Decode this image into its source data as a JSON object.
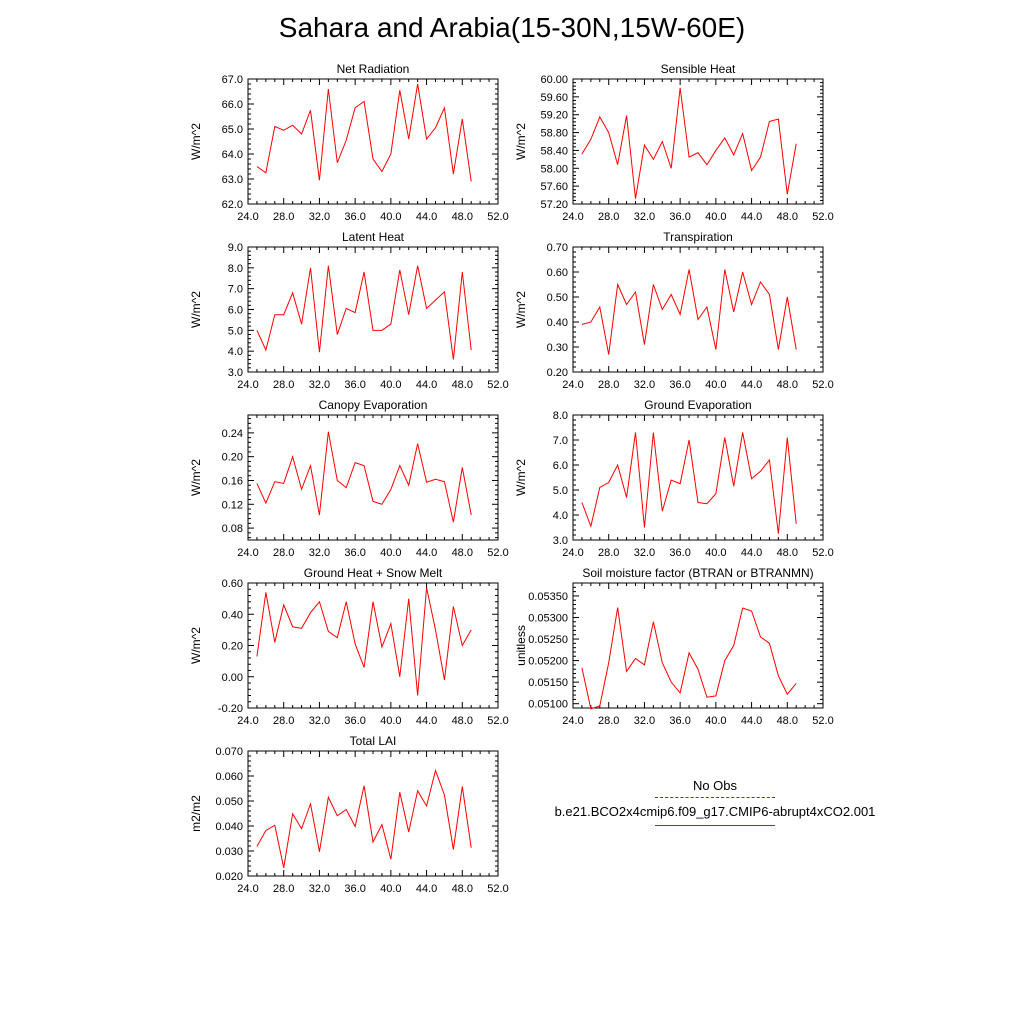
{
  "title": "Sahara and Arabia(15-30N,15W-60E)",
  "colors": {
    "series": "#ff0000",
    "obs": "#3b3b9b",
    "axis": "#000000"
  },
  "legend": {
    "obs_label": "No Obs",
    "case_label": "b.e21.BCO2x4cmip6.f09_g17.CMIP6-abrupt4xCO2.001"
  },
  "chart_data": [
    {
      "type": "line",
      "title": "Net Radiation",
      "ylabel": "W/m^2",
      "xlim": [
        24,
        52
      ],
      "ylim": [
        62,
        67
      ],
      "xticks": [
        "24.0",
        "28.0",
        "32.0",
        "36.0",
        "40.0",
        "44.0",
        "48.0",
        "52.0"
      ],
      "yticks": [
        "62.0",
        "63.0",
        "64.0",
        "65.0",
        "66.0",
        "67.0"
      ],
      "series": [
        {
          "name": "b.e21.BCO2x4cmip6.f09_g17.CMIP6-abrupt4xCO2.001",
          "x": [
            25,
            26,
            27,
            28,
            29,
            30,
            31,
            32,
            33,
            34,
            35,
            36,
            37,
            38,
            39,
            40,
            41,
            42,
            43,
            44,
            45,
            46,
            47,
            48,
            49
          ],
          "values": [
            63.5,
            63.25,
            65.1,
            64.95,
            65.15,
            64.8,
            65.75,
            62.95,
            66.6,
            63.65,
            64.55,
            65.85,
            66.1,
            63.8,
            63.3,
            64.0,
            66.55,
            64.6,
            66.8,
            64.6,
            65.05,
            65.85,
            63.2,
            65.4,
            62.9
          ]
        }
      ]
    },
    {
      "type": "line",
      "title": "Sensible Heat",
      "ylabel": "W/m^2",
      "xlim": [
        24,
        52
      ],
      "ylim": [
        57.2,
        60.0
      ],
      "xticks": [
        "24.0",
        "28.0",
        "32.0",
        "36.0",
        "40.0",
        "44.0",
        "48.0",
        "52.0"
      ],
      "yticks": [
        "57.20",
        "57.60",
        "58.00",
        "58.40",
        "58.80",
        "59.20",
        "59.60",
        "60.00"
      ],
      "series": [
        {
          "name": "b.e21.BCO2x4cmip6.f09_g17.CMIP6-abrupt4xCO2.001",
          "x": [
            25,
            26,
            27,
            28,
            29,
            30,
            31,
            32,
            33,
            34,
            35,
            36,
            37,
            38,
            39,
            40,
            41,
            42,
            43,
            44,
            45,
            46,
            47,
            48,
            49
          ],
          "values": [
            58.32,
            58.65,
            59.15,
            58.8,
            58.08,
            59.18,
            57.32,
            58.52,
            58.2,
            58.6,
            58.0,
            59.8,
            58.25,
            58.35,
            58.08,
            58.4,
            58.68,
            58.3,
            58.78,
            57.95,
            58.25,
            59.05,
            59.1,
            57.42,
            58.55
          ]
        }
      ]
    },
    {
      "type": "line",
      "title": "Latent Heat",
      "ylabel": "W/m^2",
      "xlim": [
        24,
        52
      ],
      "ylim": [
        3.0,
        9.0
      ],
      "xticks": [
        "24.0",
        "28.0",
        "32.0",
        "36.0",
        "40.0",
        "44.0",
        "48.0",
        "52.0"
      ],
      "yticks": [
        "3.0",
        "4.0",
        "5.0",
        "6.0",
        "7.0",
        "8.0",
        "9.0"
      ],
      "series": [
        {
          "name": "b.e21.BCO2x4cmip6.f09_g17.CMIP6-abrupt4xCO2.001",
          "x": [
            25,
            26,
            27,
            28,
            29,
            30,
            31,
            32,
            33,
            34,
            35,
            36,
            37,
            38,
            39,
            40,
            41,
            42,
            43,
            44,
            45,
            46,
            47,
            48,
            49
          ],
          "values": [
            5.0,
            4.05,
            5.75,
            5.75,
            6.8,
            5.3,
            8.0,
            3.95,
            8.1,
            4.8,
            6.05,
            5.85,
            7.8,
            5.0,
            5.0,
            5.3,
            7.9,
            5.75,
            8.1,
            6.05,
            6.45,
            6.85,
            3.6,
            7.8,
            4.05
          ]
        }
      ]
    },
    {
      "type": "line",
      "title": "Transpiration",
      "ylabel": "W/m^2",
      "xlim": [
        24,
        52
      ],
      "ylim": [
        0.2,
        0.7
      ],
      "xticks": [
        "24.0",
        "28.0",
        "32.0",
        "36.0",
        "40.0",
        "44.0",
        "48.0",
        "52.0"
      ],
      "yticks": [
        "0.20",
        "0.30",
        "0.40",
        "0.50",
        "0.60",
        "0.70"
      ],
      "series": [
        {
          "name": "b.e21.BCO2x4cmip6.f09_g17.CMIP6-abrupt4xCO2.001",
          "x": [
            25,
            26,
            27,
            28,
            29,
            30,
            31,
            32,
            33,
            34,
            35,
            36,
            37,
            38,
            39,
            40,
            41,
            42,
            43,
            44,
            45,
            46,
            47,
            48,
            49
          ],
          "values": [
            0.39,
            0.4,
            0.46,
            0.27,
            0.55,
            0.47,
            0.52,
            0.31,
            0.55,
            0.45,
            0.51,
            0.43,
            0.61,
            0.41,
            0.46,
            0.29,
            0.61,
            0.44,
            0.6,
            0.47,
            0.56,
            0.51,
            0.29,
            0.5,
            0.29
          ]
        }
      ]
    },
    {
      "type": "line",
      "title": "Canopy Evaporation",
      "ylabel": "W/m^2",
      "xlim": [
        24,
        52
      ],
      "ylim": [
        0.06,
        0.27
      ],
      "xticks": [
        "24.0",
        "28.0",
        "32.0",
        "36.0",
        "40.0",
        "44.0",
        "48.0",
        "52.0"
      ],
      "yticks": [
        "0.08",
        "0.12",
        "0.16",
        "0.20",
        "0.24"
      ],
      "series": [
        {
          "name": "b.e21.BCO2x4cmip6.f09_g17.CMIP6-abrupt4xCO2.001",
          "x": [
            25,
            26,
            27,
            28,
            29,
            30,
            31,
            32,
            33,
            34,
            35,
            36,
            37,
            38,
            39,
            40,
            41,
            42,
            43,
            44,
            45,
            46,
            47,
            48,
            49
          ],
          "values": [
            0.155,
            0.122,
            0.158,
            0.155,
            0.2,
            0.145,
            0.185,
            0.102,
            0.242,
            0.16,
            0.148,
            0.19,
            0.185,
            0.125,
            0.12,
            0.145,
            0.185,
            0.152,
            0.222,
            0.157,
            0.162,
            0.158,
            0.09,
            0.182,
            0.102
          ]
        }
      ]
    },
    {
      "type": "line",
      "title": "Ground Evaporation",
      "ylabel": "W/m^2",
      "xlim": [
        24,
        52
      ],
      "ylim": [
        3.0,
        8.0
      ],
      "xticks": [
        "24.0",
        "28.0",
        "32.0",
        "36.0",
        "40.0",
        "44.0",
        "48.0",
        "52.0"
      ],
      "yticks": [
        "3.0",
        "4.0",
        "5.0",
        "6.0",
        "7.0",
        "8.0"
      ],
      "series": [
        {
          "name": "b.e21.BCO2x4cmip6.f09_g17.CMIP6-abrupt4xCO2.001",
          "x": [
            25,
            26,
            27,
            28,
            29,
            30,
            31,
            32,
            33,
            34,
            35,
            36,
            37,
            38,
            39,
            40,
            41,
            42,
            43,
            44,
            45,
            46,
            47,
            48,
            49
          ],
          "values": [
            4.5,
            3.55,
            5.1,
            5.3,
            6.0,
            4.7,
            7.3,
            3.5,
            7.3,
            4.15,
            5.4,
            5.25,
            7.0,
            4.5,
            4.45,
            4.85,
            7.1,
            5.15,
            7.3,
            5.45,
            5.75,
            6.2,
            3.25,
            7.1,
            3.65
          ]
        }
      ]
    },
    {
      "type": "line",
      "title": "Ground Heat + Snow Melt",
      "ylabel": "W/m^2",
      "xlim": [
        24,
        52
      ],
      "ylim": [
        -0.2,
        0.6
      ],
      "xticks": [
        "24.0",
        "28.0",
        "32.0",
        "36.0",
        "40.0",
        "44.0",
        "48.0",
        "52.0"
      ],
      "yticks": [
        "-0.20",
        "0.00",
        "0.20",
        "0.40",
        "0.60"
      ],
      "series": [
        {
          "name": "b.e21.BCO2x4cmip6.f09_g17.CMIP6-abrupt4xCO2.001",
          "x": [
            25,
            26,
            27,
            28,
            29,
            30,
            31,
            32,
            33,
            34,
            35,
            36,
            37,
            38,
            39,
            40,
            41,
            42,
            43,
            44,
            45,
            46,
            47,
            48,
            49
          ],
          "values": [
            0.13,
            0.54,
            0.22,
            0.46,
            0.32,
            0.31,
            0.41,
            0.48,
            0.29,
            0.25,
            0.48,
            0.21,
            0.06,
            0.48,
            0.19,
            0.34,
            0.0,
            0.5,
            -0.12,
            0.57,
            0.3,
            -0.02,
            0.45,
            0.2,
            0.3
          ]
        }
      ]
    },
    {
      "type": "line",
      "title": "Soil moisture factor (BTRAN or BTRANMN)",
      "ylabel": "unitless",
      "xlim": [
        24,
        52
      ],
      "ylim": [
        0.0509,
        0.0538
      ],
      "xticks": [
        "24.0",
        "28.0",
        "32.0",
        "36.0",
        "40.0",
        "44.0",
        "48.0",
        "52.0"
      ],
      "yticks": [
        "0.05100",
        "0.05150",
        "0.05200",
        "0.05250",
        "0.05300",
        "0.05350"
      ],
      "series": [
        {
          "name": "b.e21.BCO2x4cmip6.f09_g17.CMIP6-abrupt4xCO2.001",
          "x": [
            25,
            26,
            27,
            28,
            29,
            30,
            31,
            32,
            33,
            34,
            35,
            36,
            37,
            38,
            39,
            40,
            41,
            42,
            43,
            44,
            45,
            46,
            47,
            48,
            49
          ],
          "values": [
            0.05183,
            0.05088,
            0.05095,
            0.05195,
            0.05323,
            0.05175,
            0.05205,
            0.0519,
            0.0529,
            0.05195,
            0.0515,
            0.05125,
            0.05218,
            0.0518,
            0.05115,
            0.05118,
            0.052,
            0.05235,
            0.05322,
            0.05315,
            0.05255,
            0.0524,
            0.05165,
            0.05122,
            0.05147
          ]
        }
      ]
    },
    {
      "type": "line",
      "title": "Total LAI",
      "ylabel": "m2/m2",
      "xlim": [
        24,
        52
      ],
      "ylim": [
        0.02,
        0.07
      ],
      "xticks": [
        "24.0",
        "28.0",
        "32.0",
        "36.0",
        "40.0",
        "44.0",
        "48.0",
        "52.0"
      ],
      "yticks": [
        "0.020",
        "0.030",
        "0.040",
        "0.050",
        "0.060",
        "0.070"
      ],
      "series": [
        {
          "name": "b.e21.BCO2x4cmip6.f09_g17.CMIP6-abrupt4xCO2.001",
          "x": [
            25,
            26,
            27,
            28,
            29,
            30,
            31,
            32,
            33,
            34,
            35,
            36,
            37,
            38,
            39,
            40,
            41,
            42,
            43,
            44,
            45,
            46,
            47,
            48,
            49
          ],
          "values": [
            0.0318,
            0.0382,
            0.0403,
            0.0233,
            0.0449,
            0.0389,
            0.0489,
            0.0297,
            0.0515,
            0.0441,
            0.0466,
            0.0398,
            0.0561,
            0.0336,
            0.0406,
            0.0267,
            0.0535,
            0.0376,
            0.0541,
            0.048,
            0.0622,
            0.0524,
            0.0306,
            0.0558,
            0.0313
          ]
        }
      ]
    }
  ]
}
